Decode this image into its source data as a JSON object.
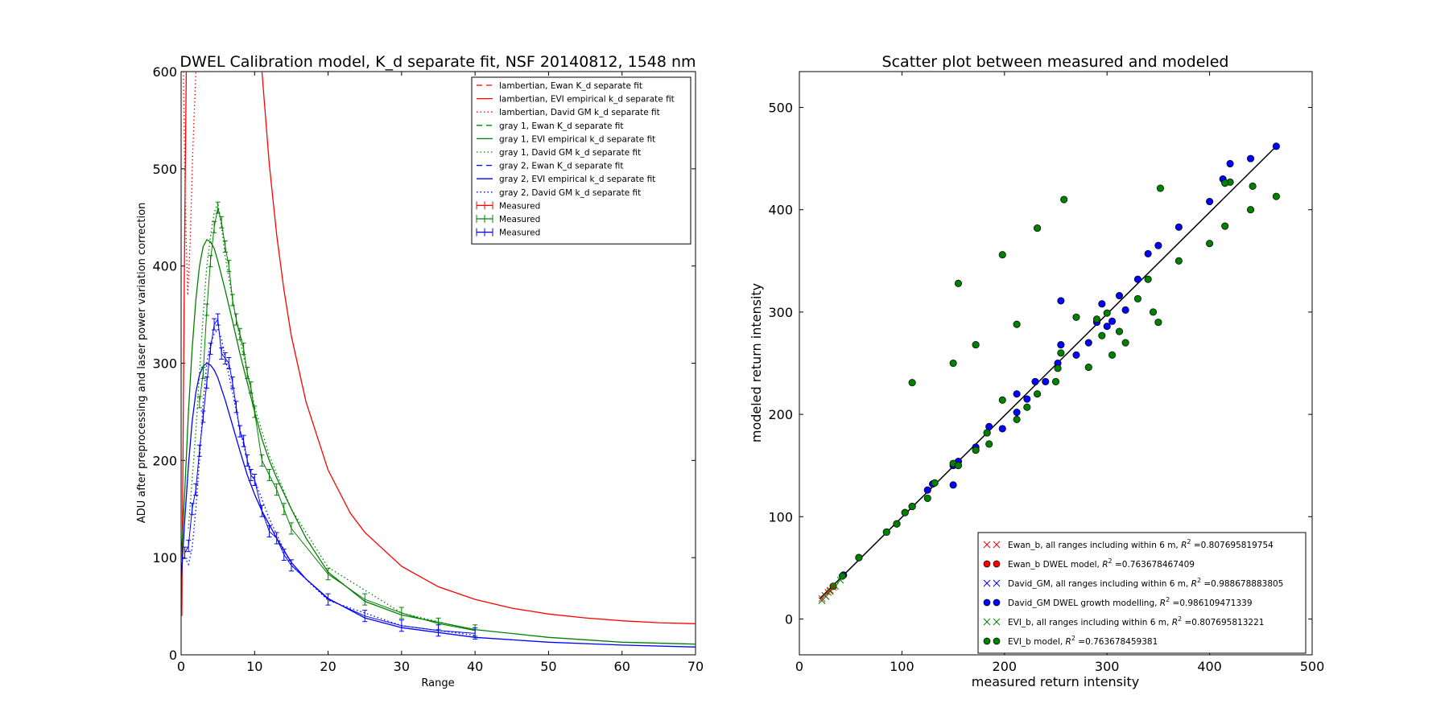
{
  "chart_data": [
    {
      "type": "line",
      "title": "DWEL Calibration model, K_d separate fit, NSF 20140812, 1548 nm",
      "xlabel": "Range",
      "ylabel": "ADU after preprocessing and laser power variation correction",
      "xlim": [
        0,
        70
      ],
      "ylim": [
        0,
        600
      ],
      "xticks": [
        "0",
        "10",
        "20",
        "30",
        "40",
        "50",
        "60",
        "70"
      ],
      "yticks": [
        "0",
        "100",
        "200",
        "300",
        "400",
        "500",
        "600"
      ],
      "legend_position": "top-right",
      "legend": [
        {
          "label": "lambertian, Ewan K_d separate fit",
          "color": "#ff0000",
          "style": "dash"
        },
        {
          "label": "lambertian, EVI empirical k_d separate fit",
          "color": "#ff0000",
          "style": "solid"
        },
        {
          "label": "lambertian, David GM  k_d separate fit",
          "color": "#ff0000",
          "style": "dot"
        },
        {
          "label": "gray 1, Ewan K_d separate fit",
          "color": "#008000",
          "style": "dash"
        },
        {
          "label": "gray 1, EVI empirical k_d separate fit",
          "color": "#008000",
          "style": "solid"
        },
        {
          "label": "gray 1, David GM  k_d separate fit",
          "color": "#008000",
          "style": "dot"
        },
        {
          "label": "gray 2, Ewan K_d separate fit",
          "color": "#0000ff",
          "style": "dash"
        },
        {
          "label": "gray 2, EVI empirical k_d separate fit",
          "color": "#0000ff",
          "style": "solid"
        },
        {
          "label": "gray 2, David GM  k_d separate fit",
          "color": "#0000ff",
          "style": "dot"
        },
        {
          "label": "Measured",
          "color": "#ff0000",
          "style": "errorbar"
        },
        {
          "label": "Measured",
          "color": "#008000",
          "style": "errorbar"
        },
        {
          "label": "Measured",
          "color": "#0000ff",
          "style": "errorbar"
        }
      ],
      "series": [
        {
          "color": "#ff0000",
          "style": "solid",
          "x": [
            11.0,
            12,
            13,
            14,
            15,
            17,
            20,
            23,
            25,
            30,
            35,
            40,
            45,
            50,
            55,
            60,
            65,
            70
          ],
          "y": [
            600,
            505,
            432,
            375,
            328,
            260,
            190,
            146,
            126,
            91,
            70,
            57,
            48,
            42,
            38,
            35,
            33,
            32
          ]
        },
        {
          "color": "#ff0000",
          "style": "solid",
          "x": [
            0.1,
            0.3,
            0.5,
            0.7
          ],
          "y": [
            40,
            250,
            450,
            600
          ]
        },
        {
          "color": "#ff0000",
          "style": "dot",
          "x": [
            0.3,
            0.6,
            0.9,
            1.2,
            1.6,
            2.0
          ],
          "y": [
            600,
            450,
            370,
            420,
            520,
            600
          ]
        },
        {
          "color": "#008000",
          "style": "solid",
          "x": [
            0,
            0.5,
            1,
            1.5,
            2,
            2.5,
            3,
            3.5,
            4,
            4.5,
            5,
            6,
            7,
            8,
            9,
            10,
            11,
            12,
            13,
            15,
            17,
            20,
            25,
            30,
            40,
            50,
            60,
            70
          ],
          "y": [
            95,
            170,
            250,
            315,
            365,
            400,
            420,
            427,
            425,
            418,
            405,
            375,
            343,
            310,
            280,
            250,
            222,
            200,
            182,
            150,
            120,
            85,
            55,
            41,
            26,
            18,
            13,
            11
          ]
        },
        {
          "color": "#008000",
          "style": "dot",
          "x": [
            1,
            1.5,
            2,
            2.5,
            3,
            3.5,
            4,
            4.5,
            5,
            5.5,
            6,
            7,
            8,
            9,
            10,
            12,
            15,
            20,
            30,
            40
          ],
          "y": [
            130,
            180,
            230,
            290,
            350,
            400,
            430,
            455,
            465,
            440,
            410,
            365,
            325,
            290,
            255,
            205,
            150,
            90,
            43,
            25
          ]
        },
        {
          "color": "#0000ff",
          "style": "solid",
          "x": [
            0,
            0.5,
            1,
            1.5,
            2,
            2.5,
            3,
            3.5,
            4,
            4.5,
            5,
            6,
            7,
            8,
            9,
            10,
            11,
            12,
            13,
            15,
            17,
            20,
            25,
            30,
            40,
            50,
            60,
            70
          ],
          "y": [
            75,
            140,
            195,
            240,
            270,
            288,
            297,
            300,
            298,
            293,
            285,
            262,
            236,
            210,
            185,
            165,
            148,
            134,
            120,
            95,
            78,
            58,
            38,
            28,
            18,
            13,
            10,
            8
          ]
        },
        {
          "color": "#0000ff",
          "style": "dot",
          "x": [
            0.5,
            1,
            1.5,
            2,
            2.5,
            3,
            3.5,
            4,
            4.5,
            5,
            5.5,
            6,
            7,
            8,
            9,
            10,
            12,
            15,
            20,
            30,
            40
          ],
          "y": [
            100,
            93,
            110,
            150,
            200,
            260,
            300,
            320,
            330,
            335,
            325,
            305,
            270,
            232,
            200,
            180,
            140,
            92,
            56,
            30,
            20
          ]
        }
      ],
      "measured": [
        {
          "color": "#008000",
          "x": [
            2.5,
            3,
            3.5,
            4,
            4.5,
            5,
            5.5,
            6,
            6.5,
            7,
            7.5,
            8,
            8.5,
            9,
            9.5,
            10,
            11,
            12,
            13,
            14,
            15,
            20,
            25,
            30,
            35,
            40
          ],
          "y": [
            260,
            290,
            355,
            405,
            440,
            460,
            445,
            420,
            400,
            365,
            345,
            330,
            315,
            290,
            275,
            250,
            200,
            185,
            170,
            150,
            130,
            83,
            57,
            43,
            32,
            25
          ]
        },
        {
          "color": "#0000ff",
          "x": [
            0.5,
            1,
            1.5,
            2,
            2.5,
            3,
            3.5,
            4,
            4.5,
            5,
            5.5,
            6,
            6.5,
            7,
            7.5,
            8,
            8.5,
            9,
            9.5,
            10,
            11,
            12,
            13,
            14,
            15,
            20,
            25,
            30,
            35,
            40
          ],
          "y": [
            105,
            112,
            150,
            170,
            210,
            245,
            280,
            315,
            340,
            345,
            310,
            305,
            300,
            280,
            255,
            230,
            220,
            200,
            185,
            180,
            148,
            127,
            120,
            103,
            92,
            57,
            40,
            30,
            25,
            22
          ]
        }
      ]
    },
    {
      "type": "scatter",
      "title": "Scatter plot between measured and modeled",
      "xlabel": "measured return intensity",
      "ylabel": "modeled return intensity",
      "xlim": [
        0,
        500
      ],
      "ylim": [
        -35,
        535
      ],
      "xticks": [
        "0",
        "100",
        "200",
        "300",
        "400",
        "500"
      ],
      "yticks": [
        "0",
        "100",
        "200",
        "300",
        "400",
        "500"
      ],
      "legend_position": "bottom-right",
      "legend": [
        {
          "label": "Ewan_b, all ranges including within 6 m, ",
          "r2": "0.807695819754",
          "marker": "x",
          "color": "#ff0000"
        },
        {
          "label": "Ewan_b DWEL model, ",
          "r2": "0.763678467409",
          "marker": "o",
          "color": "#ff0000"
        },
        {
          "label": "David_GM, all ranges including within 6 m, ",
          "r2": "0.988678883805",
          "marker": "x",
          "color": "#0000ff"
        },
        {
          "label": "David_GM DWEL growth modelling, ",
          "r2": "0.986109471339",
          "marker": "o",
          "color": "#0000ff"
        },
        {
          "label": "EVI_b, all ranges including within 6 m, ",
          "r2": "0.807695813221",
          "marker": "x",
          "color": "#008000"
        },
        {
          "label": "EVI_b model, ",
          "r2": "0.763678459381",
          "marker": "o",
          "color": "#008000"
        }
      ],
      "r2_symbol": "R",
      "r2_exp": "2",
      "r2_eq": " =",
      "fit_line": {
        "x": [
          20,
          465
        ],
        "y": [
          20,
          462
        ],
        "color": "#000000"
      },
      "points_x": [
        {
          "color": "#ff0000",
          "x": [
            22,
            25,
            28,
            30,
            33
          ],
          "y": [
            20,
            23,
            26,
            28,
            31
          ]
        },
        {
          "color": "#008000",
          "x": [
            22,
            26,
            30,
            35,
            40
          ],
          "y": [
            18,
            22,
            27,
            32,
            38
          ]
        }
      ],
      "points_o": [
        {
          "color": "#0000ff",
          "x": [
            43,
            58,
            85,
            95,
            103,
            110,
            125,
            130,
            150,
            155,
            172,
            183,
            185,
            198,
            212,
            222,
            230,
            240,
            252,
            255,
            270,
            282,
            290,
            295,
            300,
            305,
            312,
            318,
            330,
            340,
            350,
            370,
            400,
            413,
            420,
            440,
            465,
            255,
            150,
            212
          ],
          "y": [
            43,
            60,
            85,
            93,
            104,
            110,
            126,
            132,
            150,
            154,
            168,
            182,
            188,
            186,
            202,
            215,
            232,
            232,
            250,
            268,
            258,
            270,
            290,
            308,
            286,
            291,
            316,
            302,
            332,
            357,
            365,
            383,
            408,
            430,
            445,
            450,
            462,
            311,
            131,
            220
          ]
        },
        {
          "color": "#008000",
          "x": [
            33,
            42,
            58,
            85,
            95,
            103,
            110,
            125,
            132,
            150,
            155,
            172,
            183,
            185,
            198,
            212,
            222,
            232,
            250,
            252,
            255,
            270,
            282,
            290,
            295,
            300,
            305,
            312,
            318,
            330,
            340,
            345,
            350,
            370,
            400,
            415,
            420,
            440,
            465,
            110,
            150,
            155,
            172,
            198,
            212,
            232,
            258,
            352,
            415,
            442
          ],
          "y": [
            32,
            42,
            60,
            85,
            93,
            104,
            110,
            118,
            133,
            152,
            150,
            165,
            182,
            171,
            214,
            195,
            207,
            220,
            232,
            245,
            260,
            295,
            246,
            293,
            277,
            299,
            258,
            281,
            270,
            313,
            332,
            300,
            290,
            350,
            367,
            384,
            427,
            400,
            413,
            231,
            250,
            328,
            268,
            356,
            288,
            382,
            410,
            421,
            426,
            423
          ]
        }
      ]
    }
  ]
}
